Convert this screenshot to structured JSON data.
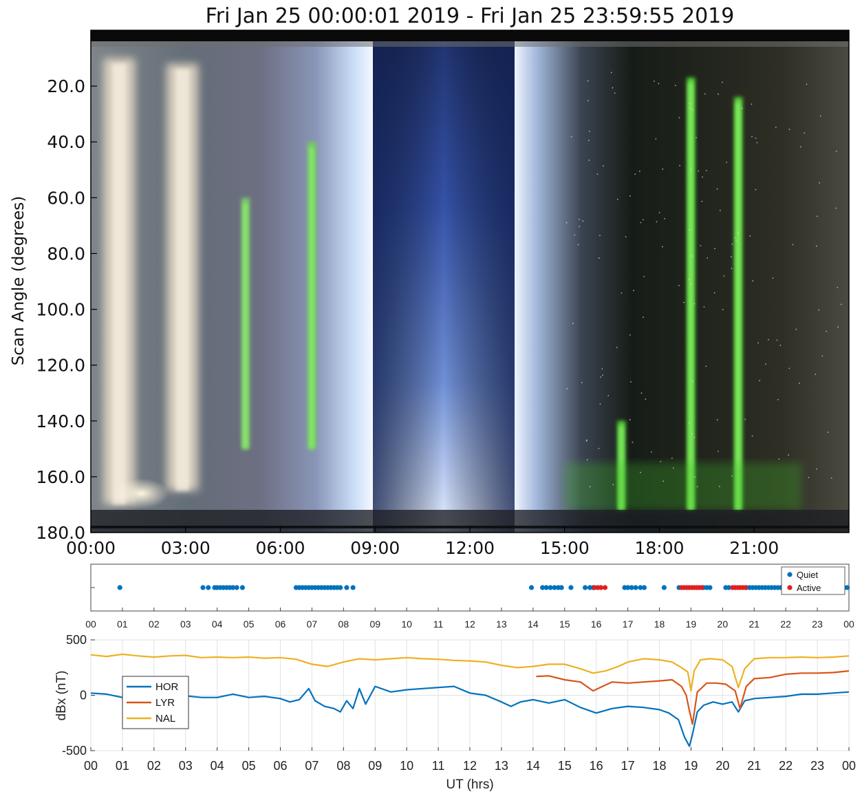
{
  "title": "Fri Jan 25 00:00:01 2019 - Fri Jan 25 23:59:55 2019",
  "colors": {
    "HOR": "#0072bd",
    "LYR": "#d95319",
    "NAL": "#edb120",
    "Quiet": "#0072bd",
    "Active": "#e02020",
    "aurora_green": "#59e03a",
    "daylight_blue": "#3a62c8"
  },
  "chart_data": [
    {
      "type": "heatmap",
      "description_key": "keogram",
      "ylabel": "Scan Angle (degrees)",
      "xlabel": "",
      "xlim": [
        0,
        24
      ],
      "ylim": [
        180,
        0
      ],
      "xticks": [
        0,
        3,
        6,
        9,
        12,
        15,
        18,
        21
      ],
      "xtick_labels": [
        "00:00",
        "03:00",
        "06:00",
        "09:00",
        "12:00",
        "15:00",
        "18:00",
        "21:00"
      ],
      "yticks": [
        20,
        40,
        60,
        80,
        100,
        120,
        140,
        160,
        180
      ],
      "ytick_labels": [
        "20.0",
        "40.0",
        "60.0",
        "80.0",
        "100.0",
        "120.0",
        "140.0",
        "160.0",
        "180.0"
      ],
      "daylight_gap_hours": [
        8.95,
        13.45
      ],
      "aurora_peaks_hours": [
        {
          "center": 0.9,
          "color": "#e8dcc8",
          "top_deg": 10,
          "bottom_deg": 170
        },
        {
          "center": 2.9,
          "color": "#e8dcc8",
          "top_deg": 12,
          "bottom_deg": 165
        },
        {
          "center": 4.9,
          "color": "#7ccf6a",
          "top_deg": 60,
          "bottom_deg": 150
        },
        {
          "center": 7.0,
          "color": "#6fd257",
          "top_deg": 40,
          "bottom_deg": 150
        },
        {
          "center": 16.8,
          "color": "#59e03a",
          "top_deg": 140,
          "bottom_deg": 172
        },
        {
          "center": 19.0,
          "color": "#5fe83a",
          "top_deg": 17,
          "bottom_deg": 172
        },
        {
          "center": 20.5,
          "color": "#5fe83a",
          "top_deg": 24,
          "bottom_deg": 172
        }
      ]
    },
    {
      "type": "scatter",
      "description_key": "activity",
      "xlim": [
        0,
        24
      ],
      "xtick_labels": [
        "00",
        "01",
        "02",
        "03",
        "04",
        "05",
        "06",
        "07",
        "08",
        "09",
        "10",
        "11",
        "12",
        "13",
        "14",
        "15",
        "16",
        "17",
        "18",
        "19",
        "20",
        "21",
        "22",
        "23",
        "00"
      ],
      "legend": [
        "Quiet",
        "Active"
      ],
      "legend_position": "top-right",
      "series": [
        {
          "name": "Quiet",
          "x": [
            0.92,
            3.55,
            3.72,
            3.92,
            4.0,
            4.1,
            4.2,
            4.3,
            4.4,
            4.5,
            4.62,
            4.8,
            6.5,
            6.6,
            6.7,
            6.8,
            6.9,
            7.0,
            7.1,
            7.2,
            7.3,
            7.4,
            7.5,
            7.6,
            7.7,
            7.8,
            7.9,
            8.1,
            8.3,
            13.95,
            14.3,
            14.42,
            14.55,
            14.68,
            14.8,
            14.9,
            15.2,
            15.65,
            15.8,
            15.9,
            16.9,
            17.0,
            17.12,
            17.25,
            17.4,
            17.52,
            18.15,
            18.62,
            19.4,
            19.5,
            19.6,
            20.1,
            20.2,
            20.75,
            20.85,
            20.95,
            21.05,
            21.15,
            21.25,
            21.35,
            21.45,
            21.55,
            21.65,
            21.75,
            21.85,
            21.95,
            22.05,
            22.15,
            22.25,
            22.35,
            22.45,
            22.55,
            22.65,
            22.75,
            22.85,
            22.95,
            23.05,
            23.15,
            23.25,
            23.35,
            23.45,
            23.55,
            23.65,
            23.75,
            23.85,
            23.95
          ]
        },
        {
          "name": "Active",
          "x": [
            15.95,
            16.05,
            16.15,
            16.28,
            18.7,
            18.78,
            18.86,
            18.94,
            19.02,
            19.1,
            19.18,
            19.26,
            19.34,
            20.32,
            20.4,
            20.48,
            20.56,
            20.64,
            20.72
          ]
        }
      ]
    },
    {
      "type": "line",
      "description_key": "magnetometer",
      "xlabel": "UT (hrs)",
      "ylabel": "dBx (nT)",
      "xlim": [
        0,
        24
      ],
      "ylim": [
        -500,
        500
      ],
      "yticks": [
        -500,
        0,
        500
      ],
      "ytick_labels": [
        "-500",
        "0",
        "500"
      ],
      "xtick_labels": [
        "00",
        "01",
        "02",
        "03",
        "04",
        "05",
        "06",
        "07",
        "08",
        "09",
        "10",
        "11",
        "12",
        "13",
        "14",
        "15",
        "16",
        "17",
        "18",
        "19",
        "20",
        "21",
        "22",
        "23",
        "00"
      ],
      "grid": true,
      "legend_position": "left",
      "series": [
        {
          "name": "HOR",
          "x": [
            0,
            0.5,
            1,
            1.5,
            2,
            2.5,
            3,
            3.5,
            4,
            4.5,
            5,
            5.5,
            6,
            6.3,
            6.6,
            6.9,
            7.1,
            7.4,
            7.7,
            7.9,
            8.1,
            8.3,
            8.5,
            8.7,
            9,
            9.5,
            10,
            10.5,
            11,
            11.5,
            12,
            12.5,
            13,
            13.3,
            13.6,
            14,
            14.5,
            15,
            15.5,
            16,
            16.5,
            17,
            17.5,
            18,
            18.3,
            18.6,
            18.8,
            18.95,
            19.05,
            19.2,
            19.4,
            19.7,
            20,
            20.3,
            20.5,
            20.7,
            21,
            21.5,
            22,
            22.5,
            23,
            23.5,
            24
          ],
          "values": [
            20,
            10,
            -20,
            0,
            -10,
            20,
            -5,
            -20,
            -20,
            10,
            -20,
            -10,
            -30,
            -60,
            -40,
            60,
            -50,
            -100,
            -120,
            -150,
            -50,
            -120,
            60,
            -80,
            80,
            30,
            50,
            60,
            70,
            80,
            20,
            0,
            -60,
            -100,
            -60,
            -40,
            -70,
            -40,
            -110,
            -160,
            -120,
            -100,
            -110,
            -130,
            -160,
            -220,
            -380,
            -460,
            -350,
            -150,
            -90,
            -60,
            -80,
            -60,
            -150,
            -50,
            -30,
            -20,
            -10,
            10,
            10,
            20,
            30
          ]
        },
        {
          "name": "LYR",
          "x": [
            14.1,
            14.5,
            15,
            15.5,
            15.9,
            16.2,
            16.5,
            17,
            17.5,
            18,
            18.4,
            18.7,
            18.85,
            18.95,
            19.05,
            19.2,
            19.5,
            19.8,
            20.1,
            20.4,
            20.55,
            20.75,
            21,
            21.5,
            22,
            22.5,
            23,
            23.5,
            24
          ],
          "values": [
            170,
            175,
            140,
            120,
            40,
            80,
            120,
            110,
            120,
            130,
            140,
            80,
            0,
            -140,
            -260,
            30,
            110,
            110,
            100,
            40,
            -120,
            80,
            150,
            160,
            190,
            200,
            200,
            205,
            220
          ]
        },
        {
          "name": "NAL",
          "x": [
            0,
            0.5,
            1,
            1.5,
            2,
            2.5,
            3,
            3.5,
            4,
            4.5,
            5,
            5.5,
            6,
            6.5,
            7,
            7.5,
            8,
            8.5,
            9,
            9.5,
            10,
            10.5,
            11,
            11.5,
            12,
            12.5,
            13,
            13.5,
            14,
            14.5,
            15,
            15.5,
            15.9,
            16.3,
            16.7,
            17,
            17.5,
            18,
            18.4,
            18.7,
            18.9,
            19.0,
            19.1,
            19.3,
            19.6,
            20,
            20.3,
            20.5,
            20.7,
            21,
            21.5,
            22,
            22.5,
            23,
            23.5,
            24
          ],
          "values": [
            365,
            350,
            370,
            355,
            345,
            355,
            360,
            340,
            345,
            340,
            345,
            335,
            340,
            325,
            280,
            260,
            300,
            330,
            320,
            330,
            340,
            330,
            325,
            315,
            310,
            300,
            270,
            250,
            260,
            280,
            280,
            240,
            200,
            220,
            260,
            300,
            330,
            320,
            300,
            250,
            210,
            40,
            220,
            320,
            330,
            320,
            260,
            70,
            240,
            330,
            340,
            340,
            345,
            340,
            345,
            355
          ]
        }
      ]
    }
  ]
}
